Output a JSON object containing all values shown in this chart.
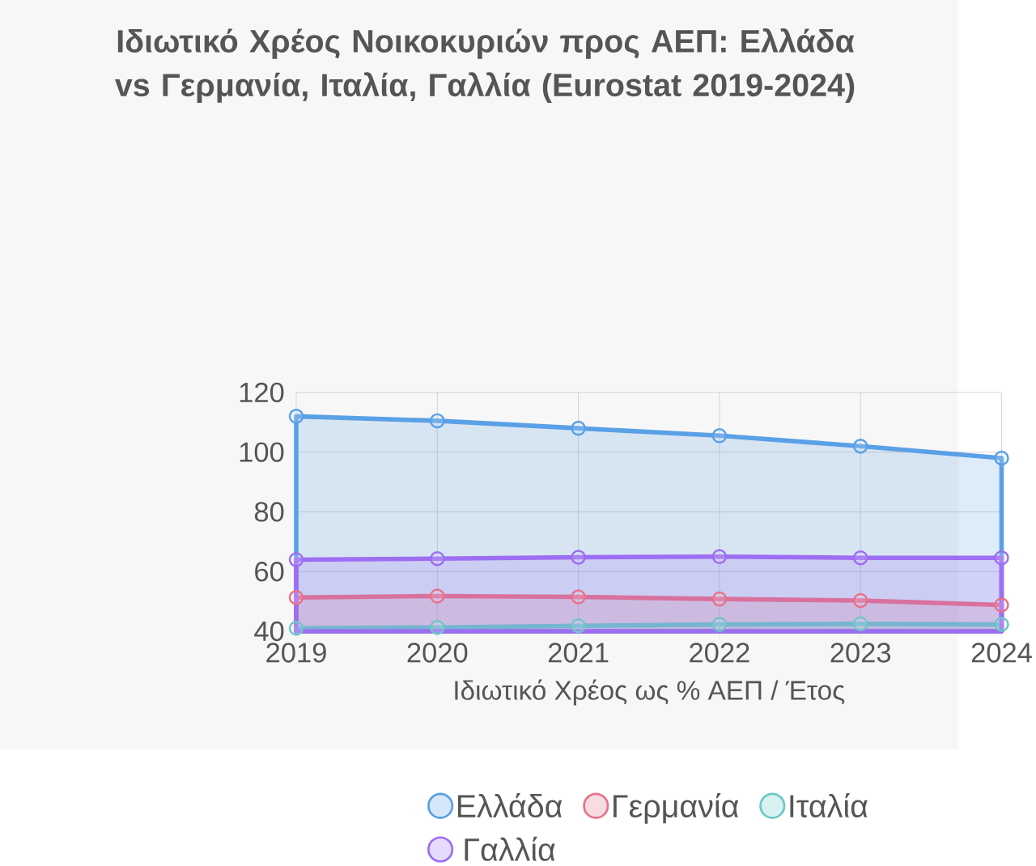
{
  "chart_data": {
    "type": "area",
    "title": "Ιδιωτικό Χρέος Νοικοκυριών προς ΑΕΠ: Ελλάδα vs Γερμανία, Ιταλία, Γαλλία (Eurostat 2019-2024)",
    "xlabel": "Ιδιωτικό Χρέος ως % ΑΕΠ / Έτος",
    "categories": [
      "2019",
      "2020",
      "2021",
      "2022",
      "2023",
      "2024"
    ],
    "series": [
      {
        "name": "Ελλάδα",
        "color": "#5aa0e6",
        "values": [
          112,
          110.5,
          108,
          105.5,
          102,
          98
        ]
      },
      {
        "name": "Γερμανία",
        "color": "#e8728a",
        "values": [
          51.3,
          51.8,
          51.5,
          50.8,
          50.3,
          48.8
        ]
      },
      {
        "name": "Ιταλία",
        "color": "#6cc7c7",
        "values": [
          41,
          41.3,
          41.8,
          42.3,
          42.5,
          42.3
        ]
      },
      {
        "name": "Γαλλία",
        "color": "#9d6ef2",
        "values": [
          64,
          64.3,
          64.8,
          65,
          64.6,
          64.6
        ]
      }
    ],
    "ylim": [
      40,
      120
    ],
    "yticks": [
      40,
      60,
      80,
      100,
      120
    ],
    "grid": true,
    "legend": "bottom",
    "marker": "circle",
    "line_style": "solid"
  }
}
